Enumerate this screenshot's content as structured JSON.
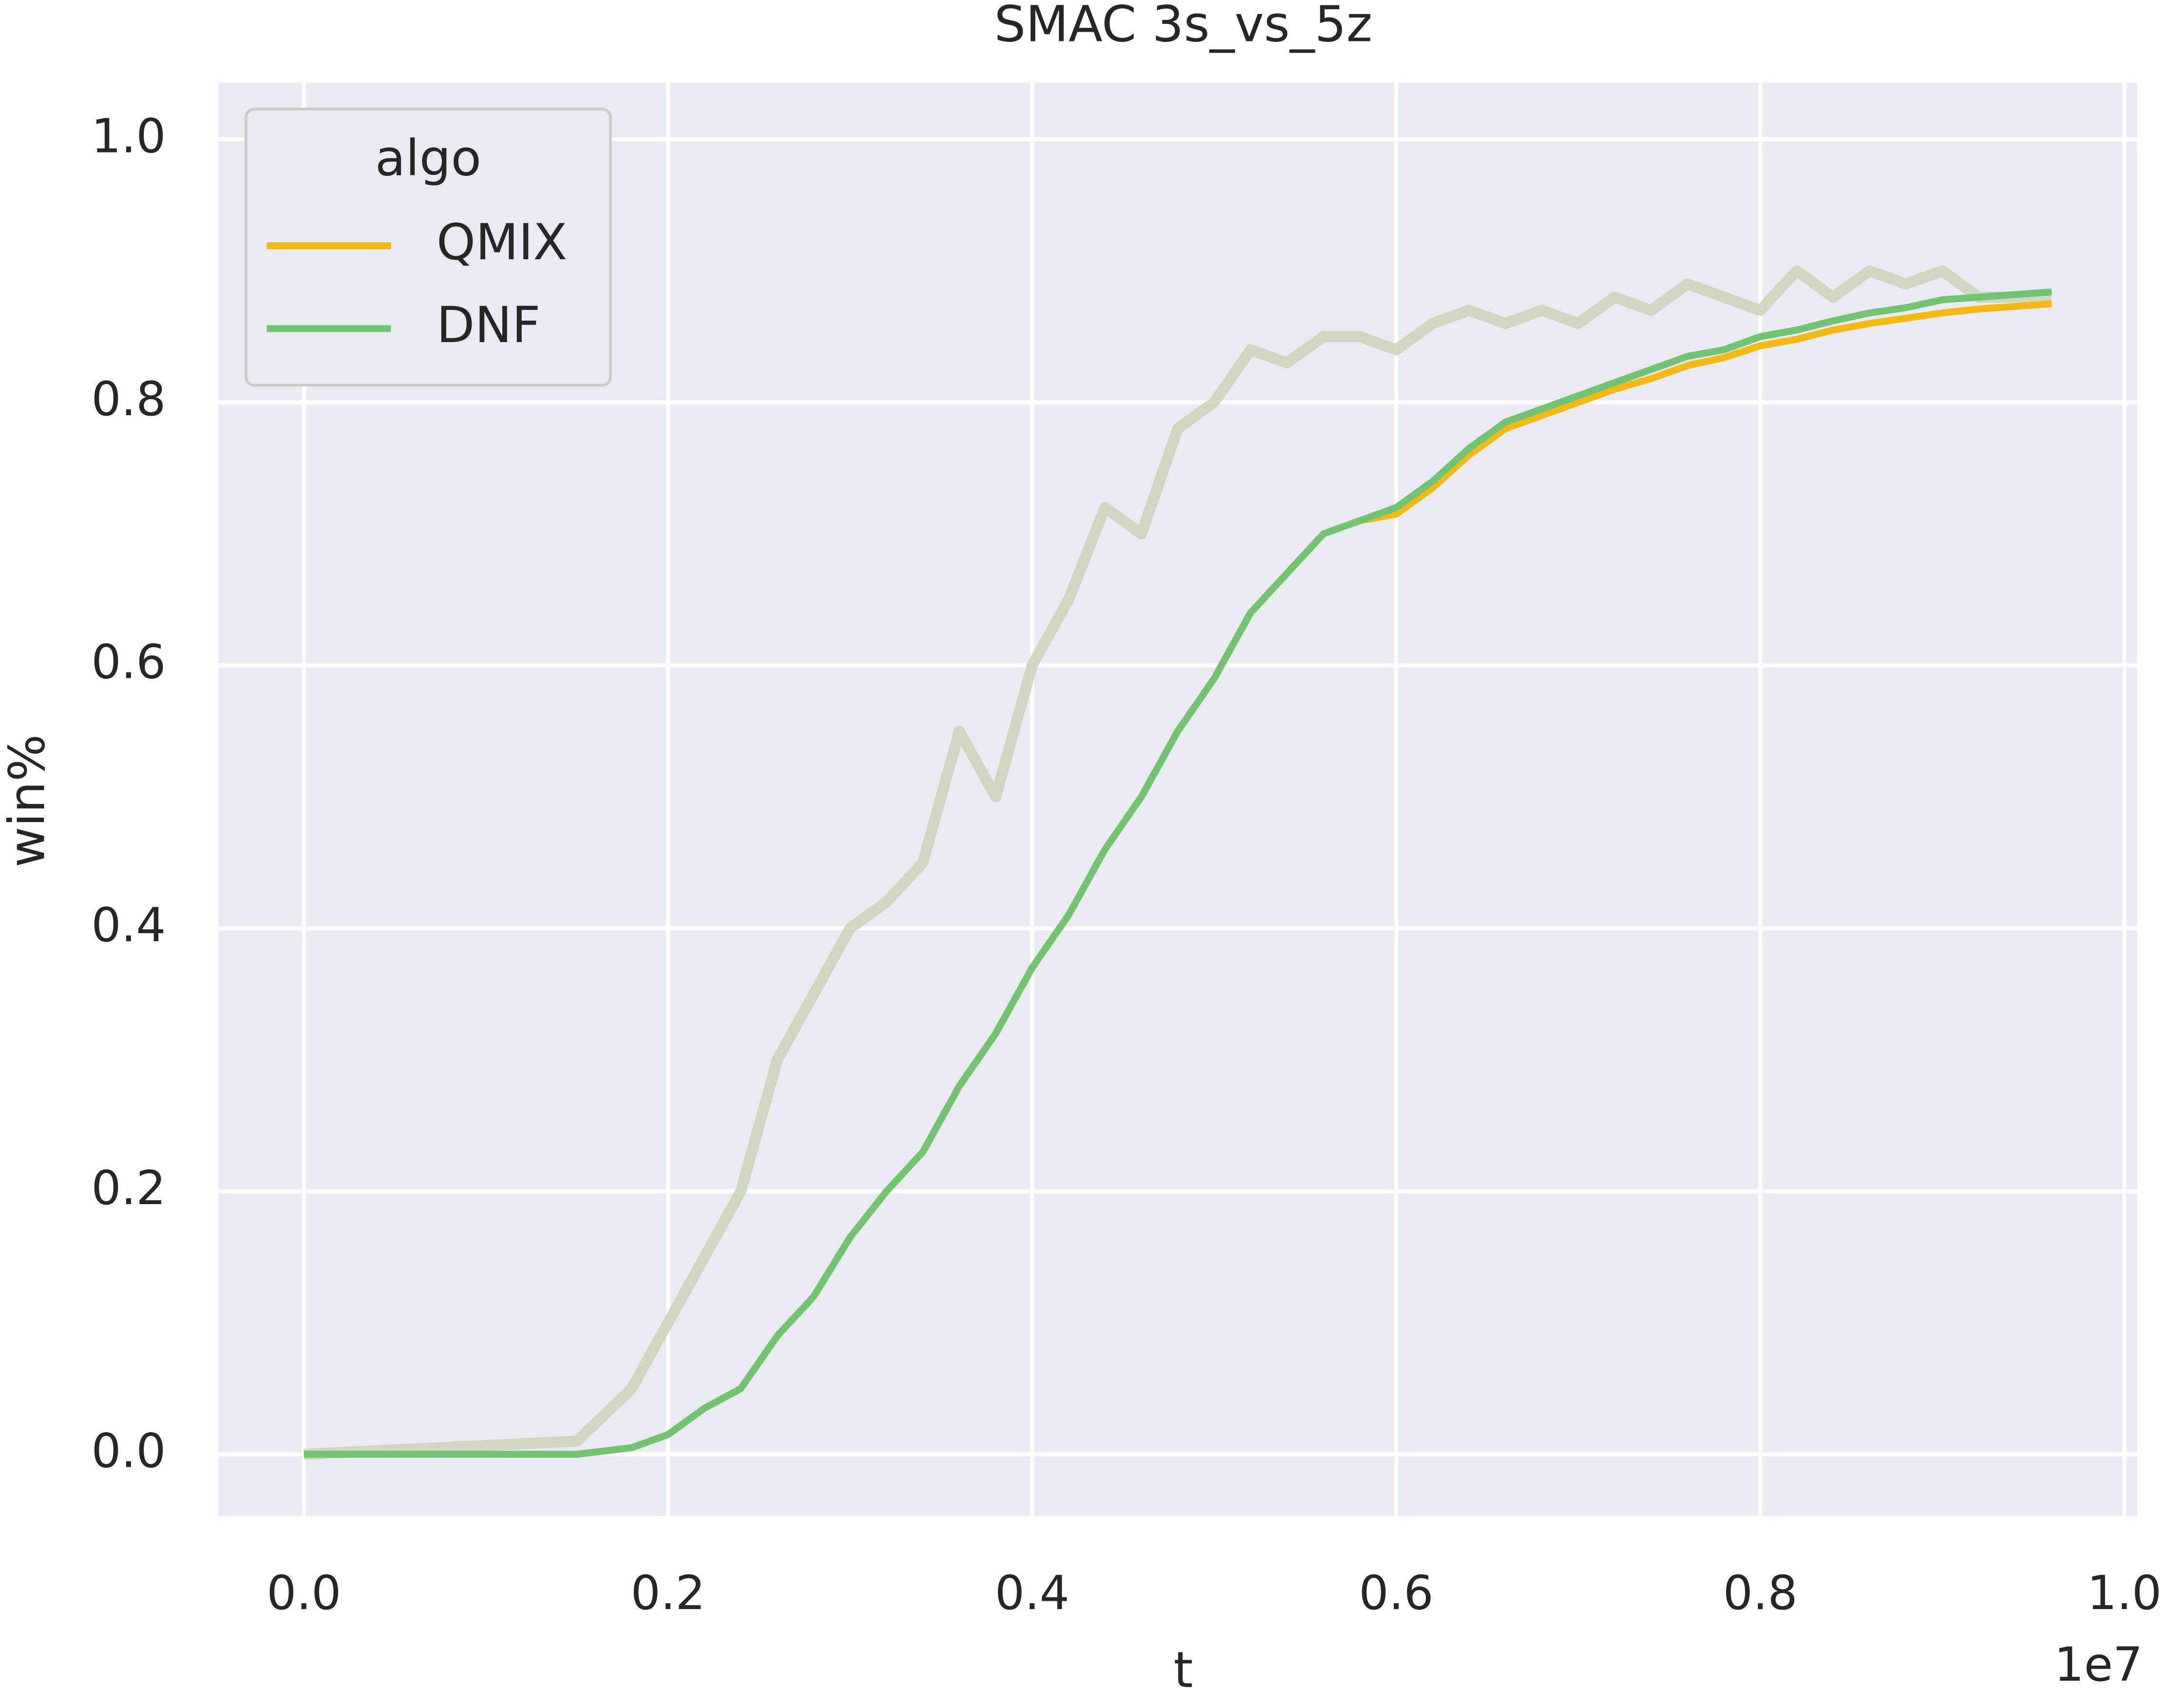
{
  "chart_data": {
    "type": "line",
    "title": "SMAC 3s_vs_5z",
    "xlabel": "t",
    "ylabel": "win%",
    "x_offset_label": "1e7",
    "legend_title": "algo",
    "legend": "upper left",
    "grid": true,
    "xlim": [
      -470000,
      10070000
    ],
    "xticks": [
      {
        "value": 0,
        "label": "0.0"
      },
      {
        "value": 2000000,
        "label": "0.2"
      },
      {
        "value": 4000000,
        "label": "0.4"
      },
      {
        "value": 6000000,
        "label": "0.6"
      },
      {
        "value": 8000000,
        "label": "0.8"
      },
      {
        "value": 10000000,
        "label": "1.0"
      }
    ],
    "ylim": [
      -0.047,
      1.043
    ],
    "yticks": [
      {
        "value": 0,
        "label": "0.0"
      },
      0.2,
      0.4,
      0.6,
      0.8,
      {
        "value": 1,
        "label": "1.0"
      }
    ],
    "x": [
      0,
      1500000,
      1800000,
      2000000,
      2200000,
      2400000,
      2600000,
      2800000,
      3000000,
      3200000,
      3400000,
      3600000,
      3800000,
      4000000,
      4200000,
      4400000,
      4600000,
      4800000,
      5000000,
      5200000,
      5400000,
      5600000,
      5800000,
      6000000,
      6200000,
      6400000,
      6600000,
      6800000,
      7000000,
      7200000,
      7400000,
      7600000,
      7800000,
      8000000,
      8200000,
      8400000,
      8600000,
      8800000,
      9000000,
      9200000,
      9600000
    ],
    "raw": {
      "color": "#ccd5b9",
      "values": [
        0,
        0.01,
        0.05,
        0.1,
        0.15,
        0.2,
        0.3,
        0.35,
        0.4,
        0.42,
        0.45,
        0.55,
        0.5,
        0.6,
        0.65,
        0.72,
        0.7,
        0.78,
        0.8,
        0.84,
        0.83,
        0.85,
        0.85,
        0.84,
        0.86,
        0.87,
        0.86,
        0.87,
        0.86,
        0.88,
        0.87,
        0.89,
        0.88,
        0.87,
        0.9,
        0.88,
        0.9,
        0.89,
        0.9,
        0.88,
        0.88
      ]
    },
    "series": [
      {
        "name": "QMIX",
        "color": "#f5b914",
        "values": [
          0,
          0,
          0.005,
          0.015,
          0.035,
          0.05,
          0.09,
          0.12,
          0.165,
          0.2,
          0.23,
          0.28,
          0.32,
          0.37,
          0.41,
          0.46,
          0.5,
          0.55,
          0.59,
          0.64,
          0.67,
          0.7,
          0.71,
          0.715,
          0.735,
          0.76,
          0.78,
          0.79,
          0.8,
          0.81,
          0.818,
          0.828,
          0.834,
          0.843,
          0.848,
          0.855,
          0.86,
          0.864,
          0.868,
          0.871,
          0.875
        ]
      },
      {
        "name": "DNF",
        "color": "#72c472",
        "values": [
          0,
          0,
          0.005,
          0.015,
          0.035,
          0.05,
          0.09,
          0.12,
          0.165,
          0.2,
          0.23,
          0.28,
          0.32,
          0.37,
          0.41,
          0.46,
          0.5,
          0.55,
          0.59,
          0.64,
          0.67,
          0.7,
          0.71,
          0.72,
          0.74,
          0.765,
          0.785,
          0.795,
          0.805,
          0.815,
          0.825,
          0.835,
          0.84,
          0.85,
          0.855,
          0.862,
          0.868,
          0.872,
          0.878,
          0.88,
          0.884
        ]
      }
    ]
  }
}
